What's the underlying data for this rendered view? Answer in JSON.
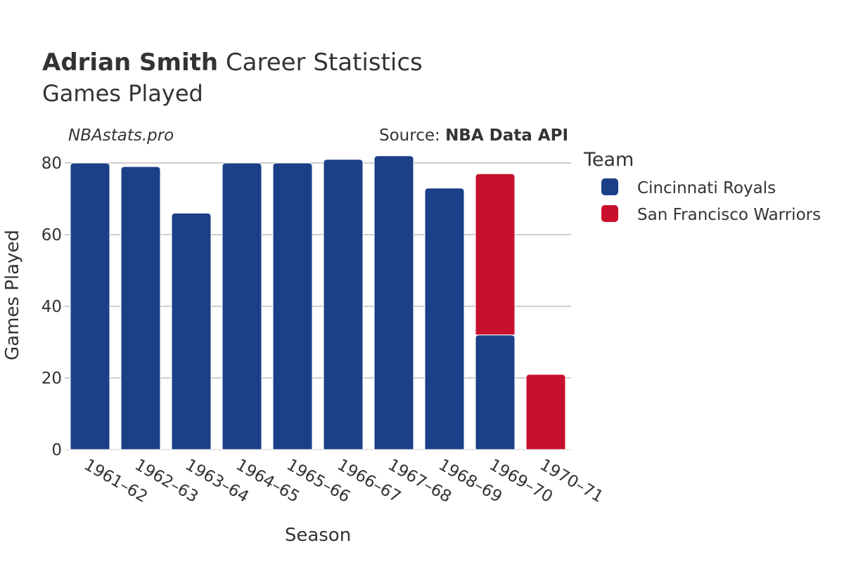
{
  "header": {
    "player_name": "Adrian Smith",
    "title_rest": " Career Statistics",
    "subtitle": "Games Played"
  },
  "watermark": "NBAstats.pro",
  "source": {
    "prefix": "Source: ",
    "name": "NBA Data API"
  },
  "colors": {
    "cincinnati_royals": "#1b4088",
    "san_francisco_warriors": "#c8102e",
    "grid": "#b0b0b0",
    "text": "#333333"
  },
  "chart_data": {
    "type": "bar",
    "stacked": true,
    "xlabel": "Season",
    "ylabel": "Games Played",
    "ylim": [
      0,
      85
    ],
    "yticks": [
      0,
      20,
      40,
      60,
      80
    ],
    "grid": true,
    "legend_title": "Team",
    "legend_position": "right",
    "categories": [
      "1961–62",
      "1962–63",
      "1963–64",
      "1964–65",
      "1965–66",
      "1966–67",
      "1967–68",
      "1968–69",
      "1969–70",
      "1970–71"
    ],
    "series": [
      {
        "name": "Cincinnati Royals",
        "color": "#1b4088",
        "values": [
          80,
          79,
          66,
          80,
          80,
          81,
          82,
          73,
          32,
          0
        ]
      },
      {
        "name": "San Francisco Warriors",
        "color": "#c8102e",
        "values": [
          0,
          0,
          0,
          0,
          0,
          0,
          0,
          0,
          45,
          21
        ]
      }
    ]
  }
}
